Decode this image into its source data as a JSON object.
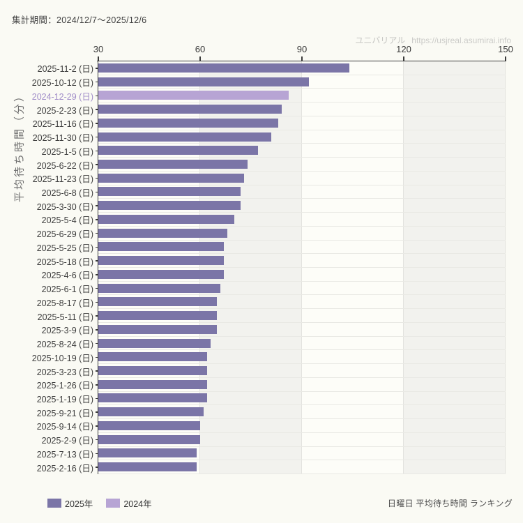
{
  "header": {
    "period_label": "集計期間：2024/12/7～2025/12/6",
    "watermark_brand": "ユニバリアル",
    "watermark_url": "https://usjreal.asumirai.info"
  },
  "colors": {
    "background": "#fafaf4",
    "bar_2025": "#7b75a7",
    "bar_2024": "#b7a4d4",
    "highlight_label": "#a08cc8",
    "axis": "#3a3a3a",
    "band_light": "#fdfdf8",
    "band_gray": "#f2f2ee"
  },
  "chart_data": {
    "type": "bar",
    "orientation": "horizontal",
    "title": "日曜日 平均待ち時間 ランキング",
    "ylabel": "平均待ち時間（分）",
    "xlabel": "",
    "unit": "分",
    "xlim": [
      30,
      150
    ],
    "x_ticks": [
      "30",
      "60",
      "90",
      "120",
      "150"
    ],
    "grid": "vertical-bands",
    "legend_position": "bottom-left",
    "legend": [
      {
        "label": "2025年",
        "color": "#7b75a7"
      },
      {
        "label": "2024年",
        "color": "#b7a4d4"
      }
    ],
    "rows": [
      {
        "label": "2025-11-2 (日)",
        "value": 104,
        "series": "2025年"
      },
      {
        "label": "2025-10-12 (日)",
        "value": 92,
        "series": "2025年"
      },
      {
        "label": "2024-12-29 (日)",
        "value": 86,
        "series": "2024年",
        "highlight": true
      },
      {
        "label": "2025-2-23 (日)",
        "value": 84,
        "series": "2025年"
      },
      {
        "label": "2025-11-16 (日)",
        "value": 83,
        "series": "2025年"
      },
      {
        "label": "2025-11-30 (日)",
        "value": 81,
        "series": "2025年"
      },
      {
        "label": "2025-1-5 (日)",
        "value": 77,
        "series": "2025年"
      },
      {
        "label": "2025-6-22 (日)",
        "value": 74,
        "series": "2025年"
      },
      {
        "label": "2025-11-23 (日)",
        "value": 73,
        "series": "2025年"
      },
      {
        "label": "2025-6-8 (日)",
        "value": 72,
        "series": "2025年"
      },
      {
        "label": "2025-3-30 (日)",
        "value": 72,
        "series": "2025年"
      },
      {
        "label": "2025-5-4 (日)",
        "value": 70,
        "series": "2025年"
      },
      {
        "label": "2025-6-29 (日)",
        "value": 68,
        "series": "2025年"
      },
      {
        "label": "2025-5-25 (日)",
        "value": 67,
        "series": "2025年"
      },
      {
        "label": "2025-5-18 (日)",
        "value": 67,
        "series": "2025年"
      },
      {
        "label": "2025-4-6 (日)",
        "value": 67,
        "series": "2025年"
      },
      {
        "label": "2025-6-1 (日)",
        "value": 66,
        "series": "2025年"
      },
      {
        "label": "2025-8-17 (日)",
        "value": 65,
        "series": "2025年"
      },
      {
        "label": "2025-5-11 (日)",
        "value": 65,
        "series": "2025年"
      },
      {
        "label": "2025-3-9 (日)",
        "value": 65,
        "series": "2025年"
      },
      {
        "label": "2025-8-24 (日)",
        "value": 63,
        "series": "2025年"
      },
      {
        "label": "2025-10-19 (日)",
        "value": 62,
        "series": "2025年"
      },
      {
        "label": "2025-3-23 (日)",
        "value": 62,
        "series": "2025年"
      },
      {
        "label": "2025-1-26 (日)",
        "value": 62,
        "series": "2025年"
      },
      {
        "label": "2025-1-19 (日)",
        "value": 62,
        "series": "2025年"
      },
      {
        "label": "2025-9-21 (日)",
        "value": 61,
        "series": "2025年"
      },
      {
        "label": "2025-9-14 (日)",
        "value": 60,
        "series": "2025年"
      },
      {
        "label": "2025-2-9 (日)",
        "value": 60,
        "series": "2025年"
      },
      {
        "label": "2025-7-13 (日)",
        "value": 59,
        "series": "2025年"
      },
      {
        "label": "2025-2-16 (日)",
        "value": 59,
        "series": "2025年"
      }
    ]
  },
  "footer": {
    "caption": "日曜日 平均待ち時間 ランキング"
  }
}
